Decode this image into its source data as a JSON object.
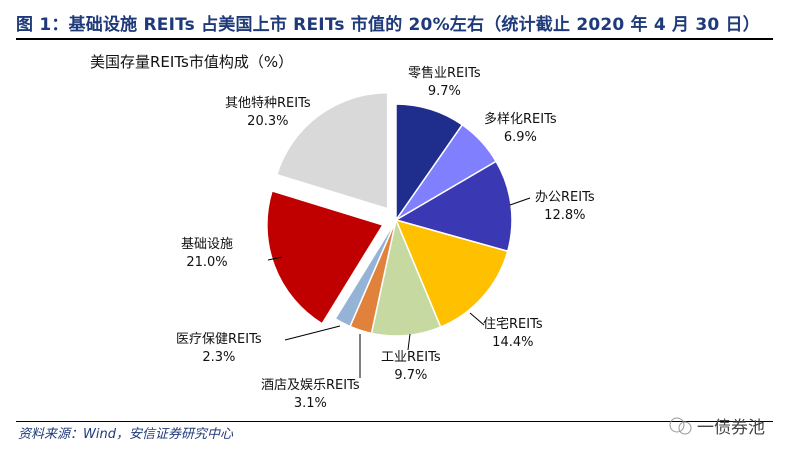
{
  "header": {
    "title": "图 1：基础设施 REITs 占美国上市 REITs 市值的 20%左右（统计截止 2020 年 4 月 30 日）"
  },
  "footer": {
    "source": "资料来源：Wind，安信证券研究中心",
    "watermark": "一债券池",
    "watermark_icon": "wechat-icon"
  },
  "chart_data": {
    "type": "pie",
    "title": "美国存量REITs市值构成（%）",
    "start": "12 o'clock, clockwise",
    "slices": [
      {
        "name": "零售业REITs",
        "value": 9.7,
        "label": "9.7%",
        "color": "#1f2e8c",
        "exploded": false
      },
      {
        "name": "多样化REITs",
        "value": 6.9,
        "label": "6.9%",
        "color": "#8080ff",
        "exploded": false
      },
      {
        "name": "办公REITs",
        "value": 12.8,
        "label": "12.8%",
        "color": "#3a39b3",
        "exploded": false
      },
      {
        "name": "住宅REITs",
        "value": 14.4,
        "label": "14.4%",
        "color": "#ffc000",
        "exploded": false
      },
      {
        "name": "工业REITs",
        "value": 9.7,
        "label": "9.7%",
        "color": "#c6d9a0",
        "exploded": false
      },
      {
        "name": "酒店及娱乐REITs",
        "value": 3.1,
        "label": "3.1%",
        "color": "#e0823c",
        "exploded": false
      },
      {
        "name": "医疗保健REITs",
        "value": 2.3,
        "label": "2.3%",
        "color": "#95b3d7",
        "exploded": false
      },
      {
        "name": "基础设施",
        "value": 21.0,
        "label": "21.0%",
        "color": "#c00000",
        "exploded": true
      },
      {
        "name": "其他特种REITs",
        "value": 20.3,
        "label": "20.3%",
        "color": "#d9d9d9",
        "exploded": true
      }
    ]
  }
}
